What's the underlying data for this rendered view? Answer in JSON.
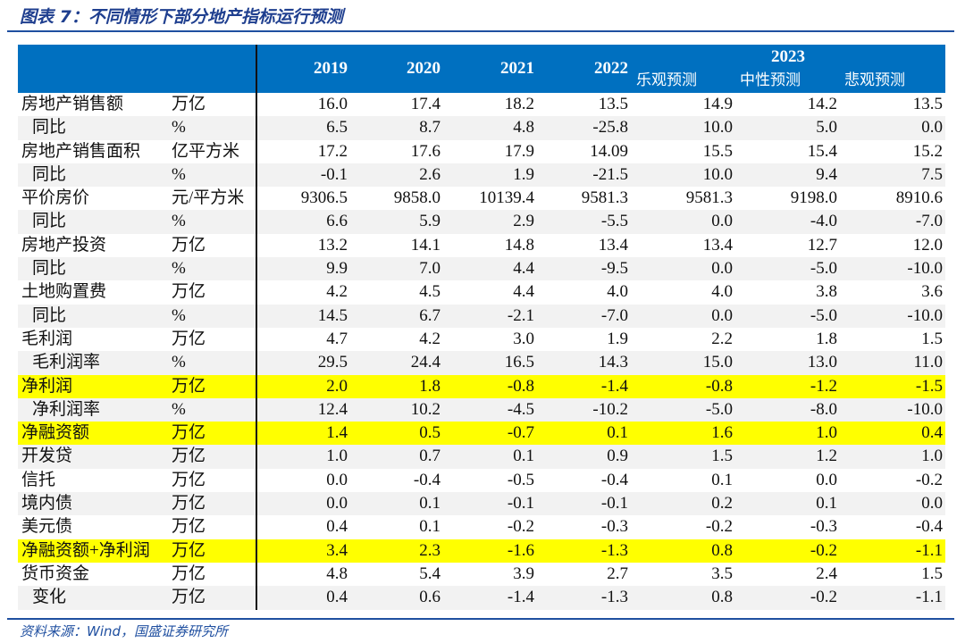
{
  "title": "图表 7：不同情形下部分地产指标运行预测",
  "source": "资料来源：Wind，国盛证券研究所",
  "header": {
    "years": [
      "2019",
      "2020",
      "2021",
      "2022"
    ],
    "group_year": "2023",
    "scenarios": [
      "乐观预测",
      "中性预测",
      "悲观预测"
    ]
  },
  "colors": {
    "header": "#0070C0",
    "highlight": "#FFFF00",
    "stripe": "#F2F2F2"
  },
  "rows": [
    {
      "label": "房地产销售额",
      "unit": "万亿",
      "values": [
        "16.0",
        "17.4",
        "18.2",
        "13.5",
        "14.9",
        "14.2",
        "13.5"
      ]
    },
    {
      "label": "同比",
      "indent": true,
      "unit": "%",
      "values": [
        "6.5",
        "8.7",
        "4.8",
        "-25.8",
        "10.0",
        "5.0",
        "0.0"
      ]
    },
    {
      "label": "房地产销售面积",
      "unit": "亿平方米",
      "values": [
        "17.2",
        "17.6",
        "17.9",
        "14.09",
        "15.5",
        "15.4",
        "15.2"
      ]
    },
    {
      "label": "同比",
      "indent": true,
      "unit": "%",
      "values": [
        "-0.1",
        "2.6",
        "1.9",
        "-21.5",
        "10.0",
        "9.4",
        "7.5"
      ]
    },
    {
      "label": "平价房价",
      "unit": "元/平方米",
      "values": [
        "9306.5",
        "9858.0",
        "10139.4",
        "9581.3",
        "9581.3",
        "9198.0",
        "8910.6"
      ]
    },
    {
      "label": "同比",
      "indent": true,
      "unit": "%",
      "values": [
        "6.6",
        "5.9",
        "2.9",
        "-5.5",
        "0.0",
        "-4.0",
        "-7.0"
      ]
    },
    {
      "label": "房地产投资",
      "unit": "万亿",
      "values": [
        "13.2",
        "14.1",
        "14.8",
        "13.4",
        "13.4",
        "12.7",
        "12.0"
      ]
    },
    {
      "label": "同比",
      "indent": true,
      "unit": "%",
      "values": [
        "9.9",
        "7.0",
        "4.4",
        "-9.5",
        "0.0",
        "-5.0",
        "-10.0"
      ]
    },
    {
      "label": "土地购置费",
      "unit": "万亿",
      "values": [
        "4.2",
        "4.5",
        "4.4",
        "4.0",
        "4.0",
        "3.8",
        "3.6"
      ]
    },
    {
      "label": "同比",
      "indent": true,
      "unit": "%",
      "values": [
        "14.5",
        "6.7",
        "-2.1",
        "-7.0",
        "0.0",
        "-5.0",
        "-10.0"
      ]
    },
    {
      "label": "毛利润",
      "unit": "万亿",
      "values": [
        "4.7",
        "4.2",
        "3.0",
        "1.9",
        "2.2",
        "1.8",
        "1.5"
      ]
    },
    {
      "label": "毛利润率",
      "indent": true,
      "unit": "%",
      "values": [
        "29.5",
        "24.4",
        "16.5",
        "14.3",
        "15.0",
        "13.0",
        "11.0"
      ]
    },
    {
      "label": "净利润",
      "unit": "万亿",
      "highlight": true,
      "values": [
        "2.0",
        "1.8",
        "-0.8",
        "-1.4",
        "-0.8",
        "-1.2",
        "-1.5"
      ]
    },
    {
      "label": "净利润率",
      "indent": true,
      "unit": "%",
      "values": [
        "12.4",
        "10.2",
        "-4.5",
        "-10.2",
        "-5.0",
        "-8.0",
        "-10.0"
      ]
    },
    {
      "label": "净融资额",
      "unit": "万亿",
      "highlight": true,
      "values": [
        "1.4",
        "0.5",
        "-0.7",
        "0.1",
        "1.6",
        "1.0",
        "0.4"
      ]
    },
    {
      "label": "开发贷",
      "unit": "万亿",
      "values": [
        "1.0",
        "0.7",
        "0.1",
        "0.9",
        "1.5",
        "1.2",
        "1.0"
      ]
    },
    {
      "label": "信托",
      "unit": "万亿",
      "values": [
        "0.0",
        "-0.4",
        "-0.5",
        "-0.4",
        "0.1",
        "0.0",
        "-0.2"
      ]
    },
    {
      "label": "境内债",
      "unit": "万亿",
      "values": [
        "0.0",
        "0.1",
        "-0.1",
        "-0.1",
        "0.2",
        "0.1",
        "0.0"
      ]
    },
    {
      "label": "美元债",
      "unit": "万亿",
      "values": [
        "0.4",
        "0.1",
        "-0.2",
        "-0.3",
        "-0.2",
        "-0.3",
        "-0.4"
      ]
    },
    {
      "label": "净融资额+净利润",
      "unit": "万亿",
      "highlight": true,
      "values": [
        "3.4",
        "2.3",
        "-1.6",
        "-1.3",
        "0.8",
        "-0.2",
        "-1.1"
      ]
    },
    {
      "label": "货币资金",
      "unit": "万亿",
      "values": [
        "4.8",
        "5.4",
        "3.9",
        "2.7",
        "3.5",
        "2.4",
        "1.5"
      ]
    },
    {
      "label": "变化",
      "indent": true,
      "unit": "万亿",
      "values": [
        "0.4",
        "0.6",
        "-1.4",
        "-1.3",
        "0.8",
        "-0.2",
        "-1.1"
      ]
    }
  ]
}
